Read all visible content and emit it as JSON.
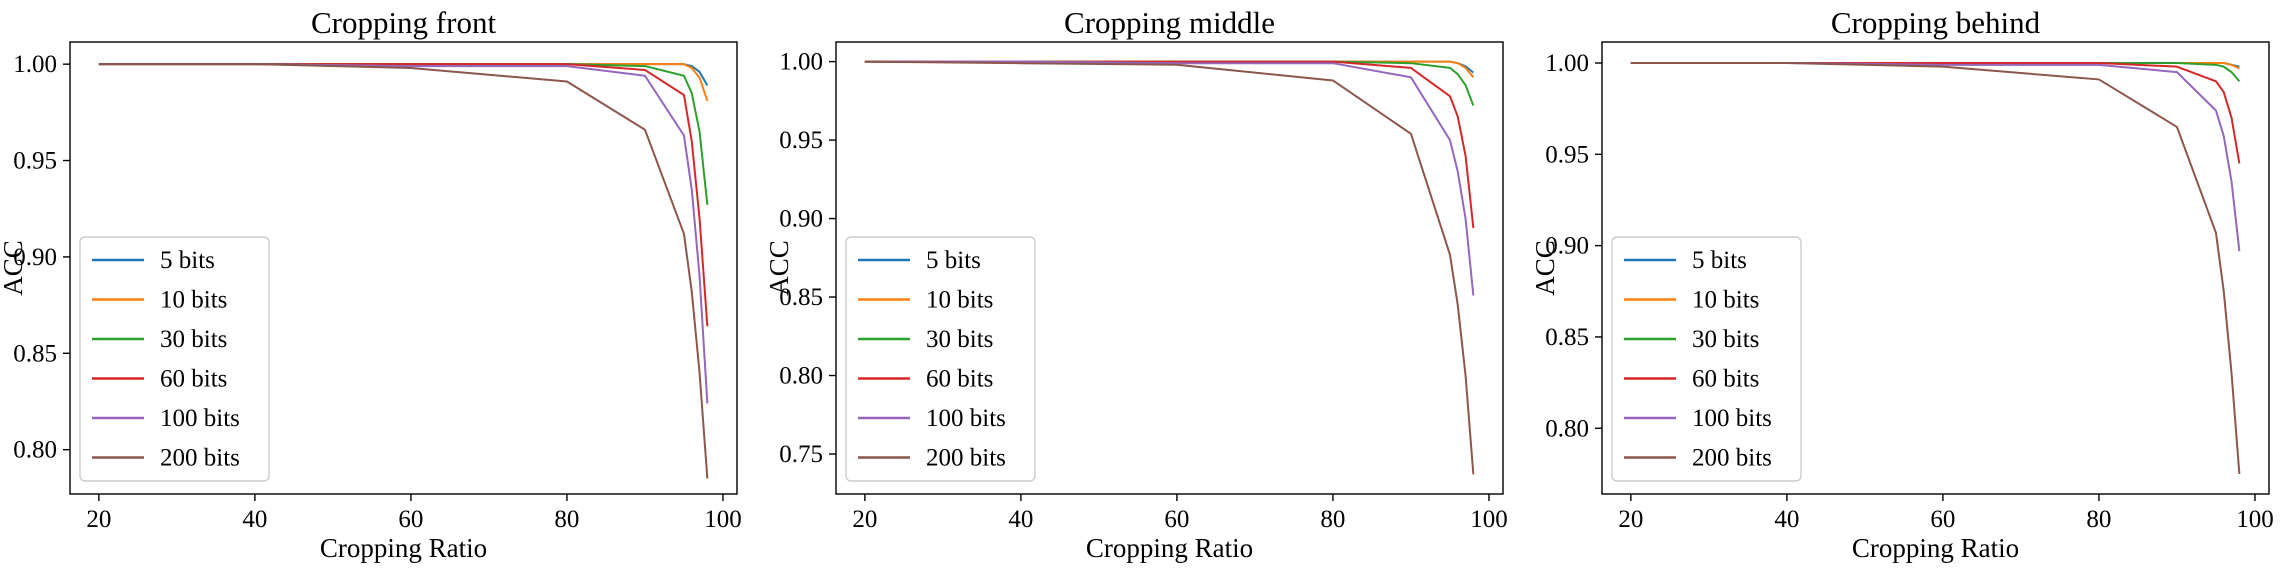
{
  "chart_data": [
    {
      "type": "line",
      "title": "Cropping front",
      "xlabel": "Cropping Ratio",
      "ylabel": "ACC",
      "xlim": [
        16.3,
        101.8
      ],
      "ylim": [
        0.777,
        1.0115
      ],
      "xticks": [
        20,
        40,
        60,
        80,
        100
      ],
      "yticks": [
        0.8,
        0.85,
        0.9,
        0.95,
        1.0
      ],
      "legend_position": "lower-left",
      "grid": false,
      "x": [
        20,
        40,
        60,
        80,
        90,
        95,
        96,
        97,
        98
      ],
      "series": [
        {
          "name": "5 bits",
          "color": "#1f77b4",
          "values": [
            1.0,
            1.0,
            1.0,
            1.0,
            1.0,
            1.0,
            0.999,
            0.996,
            0.989
          ]
        },
        {
          "name": "10 bits",
          "color": "#ff7f0e",
          "values": [
            1.0,
            1.0,
            1.0,
            1.0,
            1.0,
            1.0,
            0.998,
            0.993,
            0.981
          ]
        },
        {
          "name": "30 bits",
          "color": "#2ca02c",
          "values": [
            1.0,
            1.0,
            1.0,
            1.0,
            0.999,
            0.994,
            0.985,
            0.965,
            0.927
          ]
        },
        {
          "name": "60 bits",
          "color": "#d62728",
          "values": [
            1.0,
            1.0,
            1.0,
            1.0,
            0.997,
            0.984,
            0.96,
            0.92,
            0.864
          ]
        },
        {
          "name": "100 bits",
          "color": "#9467bd",
          "values": [
            1.0,
            1.0,
            0.999,
            0.999,
            0.994,
            0.963,
            0.935,
            0.89,
            0.824
          ]
        },
        {
          "name": "200 bits",
          "color": "#8c564b",
          "values": [
            1.0,
            1.0,
            0.998,
            0.991,
            0.966,
            0.912,
            0.882,
            0.84,
            0.785
          ]
        }
      ]
    },
    {
      "type": "line",
      "title": "Cropping middle",
      "xlabel": "Cropping Ratio",
      "ylabel": "ACC",
      "xlim": [
        16.3,
        101.8
      ],
      "ylim": [
        0.7245,
        1.0125
      ],
      "xticks": [
        20,
        40,
        60,
        80,
        100
      ],
      "yticks": [
        0.75,
        0.8,
        0.85,
        0.9,
        0.95,
        1.0
      ],
      "legend_position": "lower-left",
      "grid": false,
      "x": [
        20,
        40,
        60,
        80,
        90,
        95,
        96,
        97,
        98
      ],
      "series": [
        {
          "name": "5 bits",
          "color": "#1f77b4",
          "values": [
            1.0,
            1.0,
            1.0,
            1.0,
            1.0,
            1.0,
            0.999,
            0.997,
            0.993
          ]
        },
        {
          "name": "10 bits",
          "color": "#ff7f0e",
          "values": [
            1.0,
            1.0,
            1.0,
            1.0,
            1.0,
            1.0,
            0.999,
            0.996,
            0.99
          ]
        },
        {
          "name": "30 bits",
          "color": "#2ca02c",
          "values": [
            1.0,
            1.0,
            1.0,
            1.0,
            0.999,
            0.996,
            0.992,
            0.985,
            0.972
          ]
        },
        {
          "name": "60 bits",
          "color": "#d62728",
          "values": [
            1.0,
            1.0,
            1.0,
            1.0,
            0.996,
            0.978,
            0.965,
            0.94,
            0.894
          ]
        },
        {
          "name": "100 bits",
          "color": "#9467bd",
          "values": [
            1.0,
            1.0,
            0.999,
            0.999,
            0.99,
            0.95,
            0.93,
            0.9,
            0.851
          ]
        },
        {
          "name": "200 bits",
          "color": "#8c564b",
          "values": [
            1.0,
            0.999,
            0.998,
            0.988,
            0.954,
            0.877,
            0.845,
            0.8,
            0.737
          ]
        }
      ]
    },
    {
      "type": "line",
      "title": "Cropping behind",
      "xlabel": "Cropping Ratio",
      "ylabel": "ACC",
      "xlim": [
        16.3,
        101.8
      ],
      "ylim": [
        0.764,
        1.0115
      ],
      "xticks": [
        20,
        40,
        60,
        80,
        100
      ],
      "yticks": [
        0.8,
        0.85,
        0.9,
        0.95,
        1.0
      ],
      "legend_position": "lower-left",
      "grid": false,
      "x": [
        20,
        40,
        60,
        80,
        90,
        95,
        96,
        97,
        98
      ],
      "series": [
        {
          "name": "5 bits",
          "color": "#1f77b4",
          "values": [
            1.0,
            1.0,
            1.0,
            1.0,
            1.0,
            1.0,
            1.0,
            0.999,
            0.998
          ]
        },
        {
          "name": "10 bits",
          "color": "#ff7f0e",
          "values": [
            1.0,
            1.0,
            1.0,
            1.0,
            1.0,
            1.0,
            1.0,
            0.999,
            0.997
          ]
        },
        {
          "name": "30 bits",
          "color": "#2ca02c",
          "values": [
            1.0,
            1.0,
            1.0,
            1.0,
            1.0,
            0.999,
            0.998,
            0.995,
            0.99
          ]
        },
        {
          "name": "60 bits",
          "color": "#d62728",
          "values": [
            1.0,
            1.0,
            1.0,
            1.0,
            0.998,
            0.99,
            0.984,
            0.97,
            0.945
          ]
        },
        {
          "name": "100 bits",
          "color": "#9467bd",
          "values": [
            1.0,
            1.0,
            0.999,
            0.999,
            0.995,
            0.974,
            0.96,
            0.935,
            0.897
          ]
        },
        {
          "name": "200 bits",
          "color": "#8c564b",
          "values": [
            1.0,
            1.0,
            0.998,
            0.991,
            0.965,
            0.907,
            0.875,
            0.83,
            0.775
          ]
        }
      ]
    }
  ]
}
